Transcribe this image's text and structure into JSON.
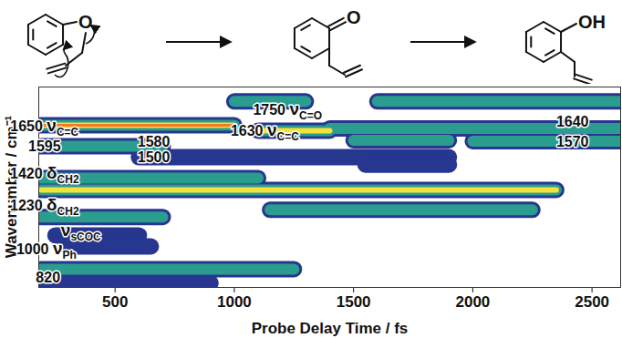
{
  "chart_data": {
    "type": "heatmap",
    "x_label": "Probe Delay Time / fs",
    "y_label": "Wavenumber / cm⁻¹",
    "xlim": [
      180,
      2620
    ],
    "xticks": [
      500,
      1000,
      1500,
      2000,
      2500
    ],
    "ylim": [
      760,
      1870
    ],
    "tick_labels": "x",
    "colors": [
      "#27368f",
      "#2a9d8f",
      "#f4e23a",
      "#f27b22"
    ],
    "bands": [
      {
        "y": 1658,
        "x1": 190,
        "x2": 1000,
        "level": 4
      },
      {
        "y": 1790,
        "x1": 1000,
        "x2": 1300,
        "level": 2
      },
      {
        "y": 1790,
        "x1": 1600,
        "x2": 2620,
        "level": 2
      },
      {
        "y": 1628,
        "x1": 1100,
        "x2": 1400,
        "level": 3
      },
      {
        "y": 1640,
        "x1": 1400,
        "x2": 2620,
        "level": 2
      },
      {
        "y": 1542,
        "x1": 190,
        "x2": 700,
        "level": 2
      },
      {
        "y": 1575,
        "x1": 1500,
        "x2": 1900,
        "level": 2
      },
      {
        "y": 1570,
        "x1": 2000,
        "x2": 2620,
        "level": 2
      },
      {
        "y": 1481,
        "x1": 600,
        "x2": 1900,
        "level": 1
      },
      {
        "y": 1440,
        "x1": 1550,
        "x2": 1900,
        "level": 1
      },
      {
        "y": 1365,
        "x1": 190,
        "x2": 1100,
        "level": 2
      },
      {
        "y": 1300,
        "x1": 190,
        "x2": 2350,
        "level": 3
      },
      {
        "y": 1190,
        "x1": 1150,
        "x2": 2250,
        "level": 2
      },
      {
        "y": 1150,
        "x1": 190,
        "x2": 700,
        "level": 2
      },
      {
        "y": 1048,
        "x1": 250,
        "x2": 600,
        "level": 1
      },
      {
        "y": 987,
        "x1": 300,
        "x2": 650,
        "level": 1
      },
      {
        "y": 861,
        "x1": 190,
        "x2": 1250,
        "level": 2
      },
      {
        "y": 785,
        "x1": 190,
        "x2": 900,
        "level": 1
      }
    ],
    "annotations": [
      {
        "x": 206,
        "y": 1653,
        "text": "1650",
        "symbol": "ν",
        "subscript": "C=C"
      },
      {
        "x": 206,
        "y": 1542,
        "text": "1595"
      },
      {
        "x": 206,
        "y": 1391,
        "text": "1420",
        "symbol": "δ",
        "subscript": "CH2"
      },
      {
        "x": 206,
        "y": 1214,
        "text": "1230",
        "symbol": "δ",
        "subscript": "CH2"
      },
      {
        "x": 359,
        "y": 1073,
        "symbol": "ν",
        "subscript": "sCOC"
      },
      {
        "x": 214,
        "y": 972,
        "text": "1000",
        "symbol": "ν",
        "subscript": "Ph"
      },
      {
        "x": 221,
        "y": 811,
        "text": "820"
      },
      {
        "x": 664,
        "y": 1567,
        "text": "1580"
      },
      {
        "x": 664,
        "y": 1481,
        "text": "1500"
      },
      {
        "x": 1225,
        "y": 1744,
        "text": "1750",
        "symbol": "ν",
        "subscript": "C=O"
      },
      {
        "x": 1130,
        "y": 1628,
        "text": "1630",
        "symbol": "ν",
        "subscript": "C=C"
      },
      {
        "x": 2420,
        "y": 1678,
        "text": "1640"
      },
      {
        "x": 2420,
        "y": 1567,
        "text": "1570"
      }
    ]
  },
  "structures": [
    {
      "label": "O"
    },
    {
      "label": "O"
    },
    {
      "label": "OH"
    }
  ]
}
